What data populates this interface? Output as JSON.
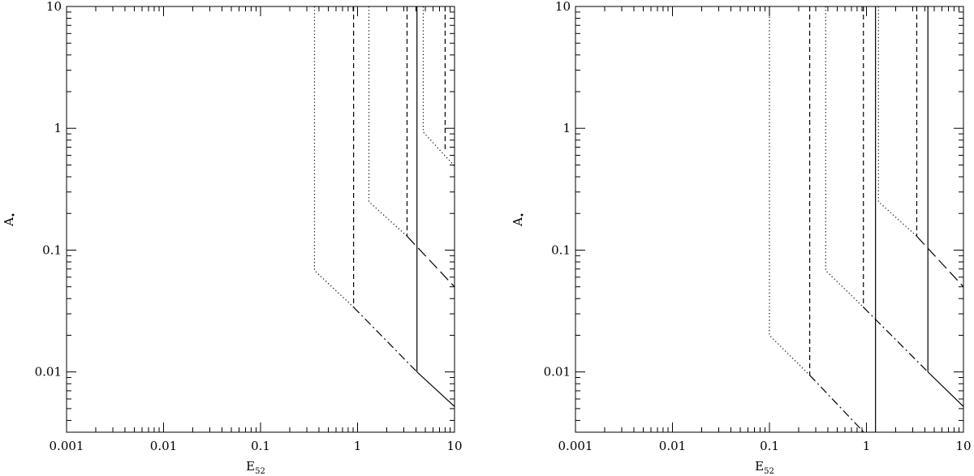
{
  "chart_data": [
    {
      "type": "line",
      "xlabel": "E",
      "xlabel_sub": "52",
      "ylabel": "A",
      "ylabel_sub": "•",
      "xscale": "log",
      "yscale": "log",
      "xlim": [
        0.001,
        10
      ],
      "ylim": [
        0.0032,
        10
      ],
      "xticks": [
        0.001,
        0.01,
        0.1,
        1,
        10
      ],
      "yticks": [
        0.01,
        0.1,
        1,
        10
      ],
      "series": [
        {
          "color": "#000000",
          "style": "dotted",
          "x": [
            0.36,
            0.36,
            0.91
          ],
          "values": [
            10,
            0.068,
            0.034
          ]
        },
        {
          "color": "#000000",
          "style": "dashed",
          "x": [
            0.91,
            0.91
          ],
          "values": [
            10,
            0.034
          ]
        },
        {
          "color": "#000000",
          "style": "dashdot",
          "x": [
            0.91,
            4.1
          ],
          "values": [
            0.034,
            0.01
          ]
        },
        {
          "color": "#000000",
          "style": "solid",
          "x": [
            4.1,
            4.1,
            10
          ],
          "values": [
            10,
            0.01,
            0.0052
          ]
        },
        {
          "color": "#000000",
          "style": "dotted",
          "x": [
            1.31,
            1.31,
            3.24
          ],
          "values": [
            10,
            0.25,
            0.13
          ]
        },
        {
          "color": "#000000",
          "style": "dashed",
          "x": [
            3.24,
            3.24
          ],
          "values": [
            10,
            0.13
          ]
        },
        {
          "color": "#000000",
          "style": "longdash",
          "x": [
            3.24,
            10
          ],
          "values": [
            0.13,
            0.05
          ]
        },
        {
          "color": "#000000",
          "style": "dotted",
          "x": [
            4.76,
            4.76,
            10
          ],
          "values": [
            10,
            0.93,
            0.49
          ]
        },
        {
          "color": "#000000",
          "style": "dashed",
          "x": [
            8.0,
            8.0
          ],
          "values": [
            10,
            0.66
          ]
        }
      ]
    },
    {
      "type": "line",
      "xlabel": "E",
      "xlabel_sub": "52",
      "ylabel": "A",
      "ylabel_sub": "•",
      "xscale": "log",
      "yscale": "log",
      "xlim": [
        0.001,
        10
      ],
      "ylim": [
        0.0032,
        10
      ],
      "xticks": [
        0.001,
        0.01,
        0.1,
        1,
        10
      ],
      "yticks": [
        0.01,
        0.1,
        1,
        10
      ],
      "series": [
        {
          "color": "#000000",
          "style": "dotted",
          "x": [
            0.1,
            0.1,
            0.26
          ],
          "values": [
            10,
            0.02,
            0.0094
          ]
        },
        {
          "color": "#000000",
          "style": "dashed",
          "x": [
            0.26,
            0.26
          ],
          "values": [
            10,
            0.0094
          ]
        },
        {
          "color": "#000000",
          "style": "dashdot",
          "x": [
            0.26,
            0.94
          ],
          "values": [
            0.0094,
            0.0032
          ]
        },
        {
          "color": "#000000",
          "style": "dotted",
          "x": [
            0.38,
            0.38,
            0.93
          ],
          "values": [
            10,
            0.068,
            0.034
          ]
        },
        {
          "color": "#000000",
          "style": "dashed",
          "x": [
            0.93,
            0.93
          ],
          "values": [
            10,
            0.034
          ]
        },
        {
          "color": "#000000",
          "style": "dashdot",
          "x": [
            0.93,
            4.3
          ],
          "values": [
            0.034,
            0.01
          ]
        },
        {
          "color": "#000000",
          "style": "solid",
          "x": [
            4.3,
            4.3,
            10
          ],
          "values": [
            10,
            0.01,
            0.0052
          ]
        },
        {
          "color": "#000000",
          "style": "solid",
          "x": [
            1.24,
            1.24
          ],
          "values": [
            10,
            0.0032
          ]
        },
        {
          "color": "#000000",
          "style": "dotted",
          "x": [
            1.33,
            1.33,
            3.3
          ],
          "values": [
            10,
            0.25,
            0.13
          ]
        },
        {
          "color": "#000000",
          "style": "dashed",
          "x": [
            3.3,
            3.3
          ],
          "values": [
            10,
            0.13
          ]
        },
        {
          "color": "#000000",
          "style": "longdash",
          "x": [
            3.3,
            10
          ],
          "values": [
            0.13,
            0.05
          ]
        }
      ]
    }
  ]
}
